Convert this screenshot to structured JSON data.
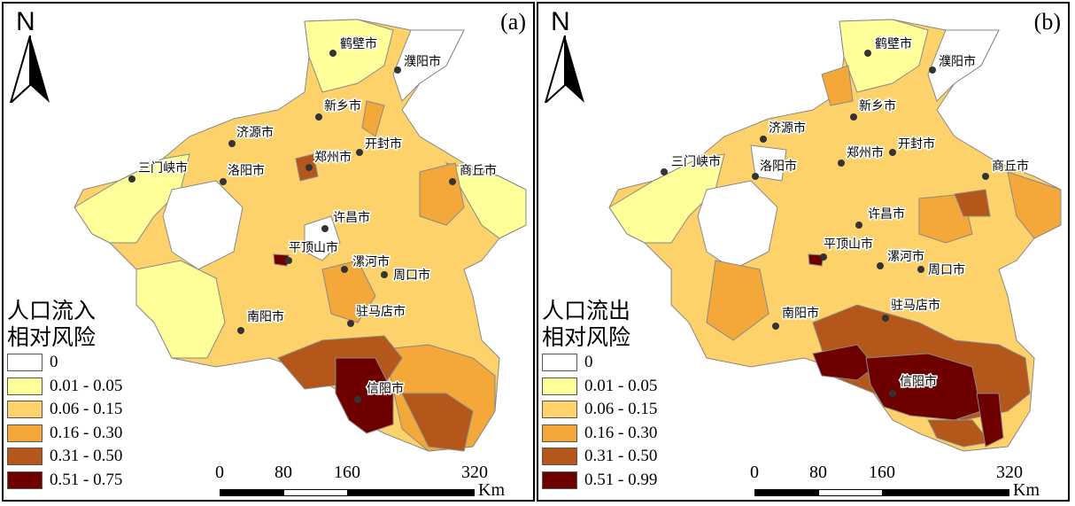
{
  "panels": [
    {
      "id": "a",
      "label": "(a)",
      "north_label": "N",
      "legend_title_line1": "人口流入",
      "legend_title_line2": "相对风险",
      "legend_classes": [
        "0",
        "0.01 - 0.05",
        "0.06 - 0.15",
        "0.16 - 0.30",
        "0.31 - 0.50",
        "0.51 - 0.75"
      ],
      "scale_ticks": [
        "0",
        "80",
        "160",
        "320"
      ],
      "scale_unit": "Km"
    },
    {
      "id": "b",
      "label": "(b)",
      "north_label": "N",
      "legend_title_line1": "人口流出",
      "legend_title_line2": "相对风险",
      "legend_classes": [
        "0",
        "0.01 - 0.05",
        "0.06 - 0.15",
        "0.16 - 0.30",
        "0.31 - 0.50",
        "0.51 - 0.99"
      ],
      "scale_ticks": [
        "0",
        "80",
        "160",
        "320"
      ],
      "scale_unit": "Km"
    }
  ],
  "class_colors": [
    "#ffffff",
    "#ffff99",
    "#fdd26a",
    "#f5a83a",
    "#b5561a",
    "#6e0000"
  ],
  "cities": [
    "鹤壁市",
    "濮阳市",
    "新乡市",
    "济源市",
    "郑州市",
    "开封市",
    "三门峡市",
    "洛阳市",
    "商丘市",
    "许昌市",
    "平顶山市",
    "漯河市",
    "周口市",
    "驻马店市",
    "南阳市",
    "信阳市"
  ]
}
